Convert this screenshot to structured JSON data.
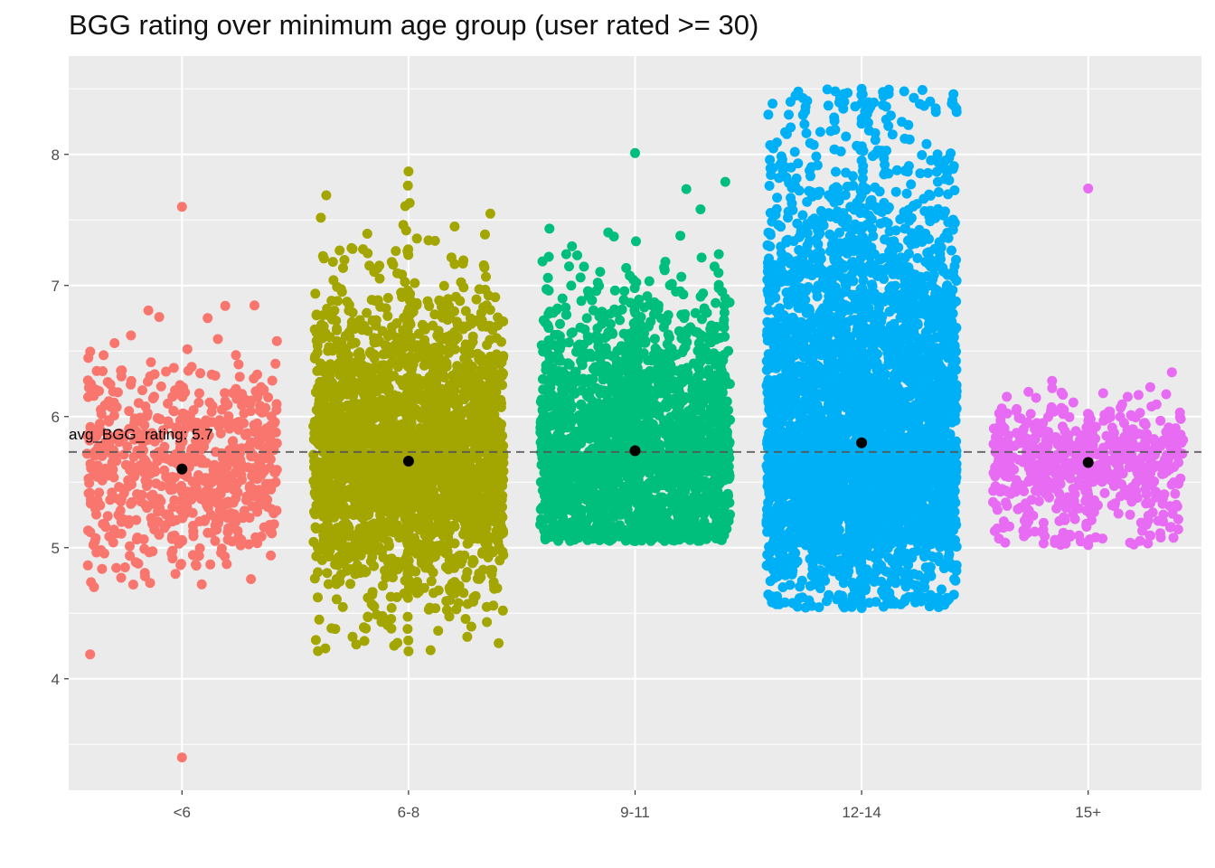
{
  "chart_data": {
    "type": "scatter",
    "title": "BGG rating over minimum age group (user rated >= 30)",
    "xlabel": "",
    "ylabel": "",
    "categories": [
      "<6",
      "6-8",
      "9-11",
      "12-14",
      "15+"
    ],
    "ylim": [
      3.15,
      8.75
    ],
    "y_ticks": [
      "4",
      "5",
      "6",
      "7",
      "8"
    ],
    "grid": true,
    "legend": "none",
    "reference_line": {
      "value": 5.73,
      "style": "dashed",
      "label": "avg_BGG_rating:  5.7"
    },
    "groups": [
      {
        "category": "<6",
        "color": "#F8766D",
        "mean": 5.6,
        "min": 3.4,
        "max": 7.6,
        "core": [
          5.35,
          5.95
        ]
      },
      {
        "category": "6-8",
        "color": "#A3A500",
        "mean": 5.66,
        "min": 4.21,
        "max": 7.87,
        "core": [
          5.3,
          6.3
        ]
      },
      {
        "category": "9-11",
        "color": "#00BF7D",
        "mean": 5.74,
        "min": 5.05,
        "max": 8.01,
        "core": [
          5.4,
          6.3
        ]
      },
      {
        "category": "12-14",
        "color": "#00B0F6",
        "mean": 5.8,
        "min": 4.54,
        "max": 8.5,
        "core": [
          5.4,
          6.9
        ]
      },
      {
        "category": "15+",
        "color": "#E76BF3",
        "mean": 5.65,
        "min": 5.02,
        "max": 7.74,
        "core": [
          5.45,
          5.8
        ]
      }
    ]
  }
}
